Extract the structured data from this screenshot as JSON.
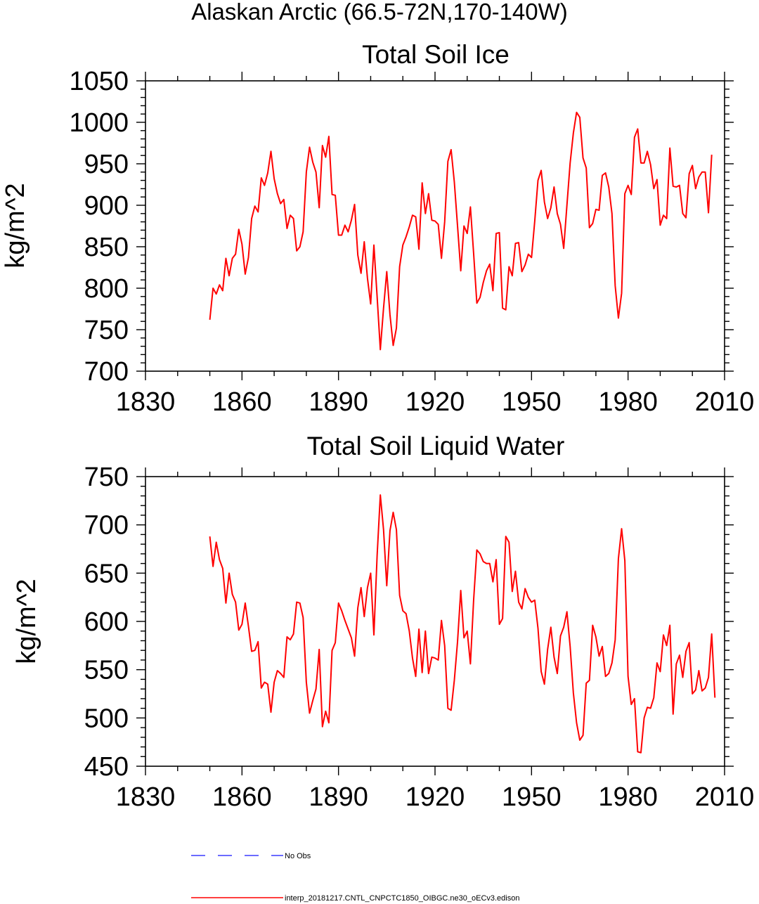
{
  "figure": {
    "suptitle": "Alaskan Arctic (66.5-72N,170-140W)",
    "legend": {
      "position": "bottom-left",
      "entries": [
        {
          "label": "No Obs",
          "color": "#3b3bff",
          "style": "dashed"
        },
        {
          "label": "interp_20181217.CNTL_CNPCTC1850_OIBGC.ne30_oECv3.edison",
          "color": "#ff0000",
          "style": "solid"
        }
      ]
    }
  },
  "chart_data": [
    {
      "type": "line",
      "title": "Total Soil Ice",
      "xlabel": "",
      "ylabel": "kg/m^2",
      "xlim": [
        1830,
        2010
      ],
      "ylim": [
        700,
        1050
      ],
      "xticks": [
        1830,
        1860,
        1890,
        1920,
        1950,
        1980,
        2010
      ],
      "yticks": [
        700,
        750,
        800,
        850,
        900,
        950,
        1000,
        1050
      ],
      "grid": false,
      "series": [
        {
          "name": "interp_20181217.CNTL_CNPCTC1850_OIBGC.ne30_oECv3.edison",
          "color": "#ff0000",
          "x_start": 1850,
          "x_step": 1,
          "values": [
            762,
            800,
            793,
            804,
            797,
            836,
            815,
            836,
            841,
            871,
            853,
            817,
            837,
            884,
            899,
            892,
            933,
            924,
            939,
            965,
            932,
            914,
            902,
            907,
            872,
            888,
            884,
            845,
            850,
            868,
            940,
            970,
            952,
            940,
            897,
            972,
            958,
            983,
            913,
            912,
            864,
            864,
            876,
            868,
            882,
            901,
            840,
            818,
            856,
            812,
            781,
            852,
            790,
            726,
            776,
            820,
            768,
            731,
            752,
            826,
            852,
            862,
            874,
            888,
            886,
            847,
            927,
            890,
            914,
            882,
            881,
            877,
            836,
            880,
            953,
            967,
            928,
            875,
            821,
            875,
            866,
            898,
            842,
            782,
            789,
            807,
            821,
            829,
            797,
            866,
            867,
            776,
            774,
            826,
            815,
            854,
            855,
            820,
            828,
            841,
            837,
            881,
            930,
            942,
            904,
            884,
            897,
            922,
            890,
            877,
            848,
            900,
            951,
            987,
            1012,
            1006,
            957,
            945,
            873,
            878,
            895,
            894,
            936,
            939,
            922,
            890,
            803,
            764,
            794,
            914,
            924,
            913,
            982,
            992,
            951,
            951,
            965,
            949,
            920,
            931,
            876,
            888,
            884,
            969,
            923,
            922,
            924,
            890,
            885,
            938,
            948,
            920,
            934,
            940,
            940,
            891,
            961
          ]
        }
      ]
    },
    {
      "type": "line",
      "title": "Total Soil Liquid Water",
      "xlabel": "",
      "ylabel": "kg/m^2",
      "xlim": [
        1830,
        2010
      ],
      "ylim": [
        450,
        750
      ],
      "xticks": [
        1830,
        1860,
        1890,
        1920,
        1950,
        1980,
        2010
      ],
      "yticks": [
        450,
        500,
        550,
        600,
        650,
        700,
        750
      ],
      "grid": false,
      "series": [
        {
          "name": "interp_20181217.CNTL_CNPCTC1850_OIBGC.ne30_oECv3.edison",
          "color": "#ff0000",
          "x_start": 1850,
          "x_step": 1,
          "values": [
            688,
            657,
            682,
            664,
            655,
            619,
            650,
            628,
            620,
            591,
            597,
            619,
            595,
            569,
            570,
            579,
            531,
            537,
            535,
            506,
            537,
            549,
            546,
            542,
            584,
            581,
            587,
            620,
            619,
            604,
            537,
            505,
            518,
            530,
            571,
            491,
            507,
            495,
            570,
            578,
            619,
            611,
            601,
            592,
            583,
            564,
            614,
            635,
            605,
            635,
            650,
            586,
            668,
            731,
            695,
            637,
            694,
            713,
            695,
            627,
            611,
            608,
            590,
            562,
            543,
            592,
            547,
            590,
            546,
            563,
            562,
            560,
            601,
            575,
            510,
            508,
            539,
            579,
            632,
            583,
            590,
            556,
            622,
            674,
            670,
            662,
            660,
            660,
            641,
            664,
            597,
            603,
            688,
            682,
            631,
            652,
            620,
            613,
            634,
            625,
            620,
            622,
            593,
            548,
            535,
            571,
            594,
            563,
            546,
            585,
            594,
            610,
            574,
            526,
            495,
            477,
            482,
            536,
            539,
            596,
            584,
            564,
            574,
            543,
            546,
            557,
            581,
            665,
            696,
            663,
            543,
            514,
            520,
            465,
            464,
            500,
            511,
            510,
            521,
            557,
            548,
            586,
            575,
            596,
            504,
            556,
            565,
            542,
            569,
            578,
            525,
            529,
            549,
            528,
            531,
            542,
            587,
            521
          ]
        }
      ]
    }
  ]
}
